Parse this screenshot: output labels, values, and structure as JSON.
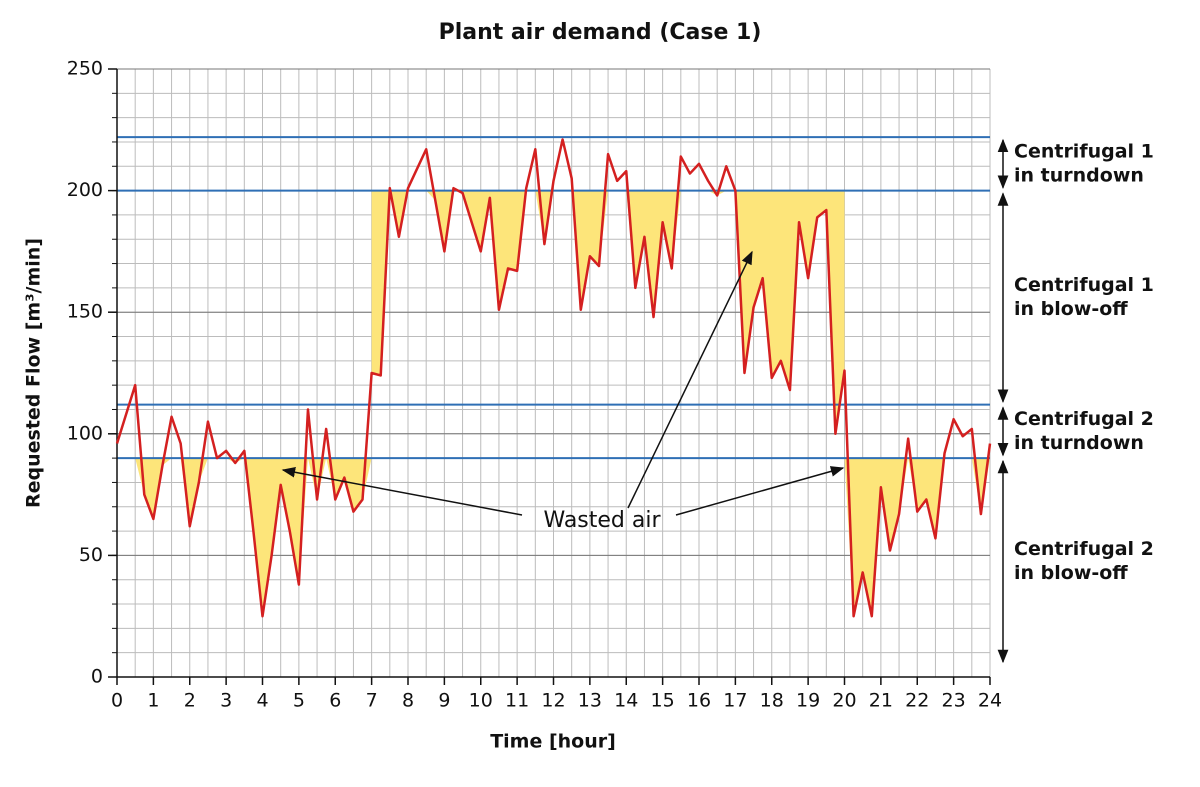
{
  "chart_data": {
    "type": "line",
    "title": "Plant air demand (Case 1)",
    "xlabel": "Time [hour]",
    "ylabel": "Requested Flow [m³/min]",
    "xlim": [
      0,
      24
    ],
    "ylim": [
      0,
      250
    ],
    "xticks": [
      0,
      1,
      2,
      3,
      4,
      5,
      6,
      7,
      8,
      9,
      10,
      11,
      12,
      13,
      14,
      15,
      16,
      17,
      18,
      19,
      20,
      21,
      22,
      23,
      24
    ],
    "yticks": [
      0,
      50,
      100,
      150,
      200,
      250
    ],
    "grid": true,
    "x_minor_step": 0.5,
    "y_minor_step": 10,
    "x": [
      0,
      0.25,
      0.5,
      0.75,
      1,
      1.25,
      1.5,
      1.75,
      2,
      2.25,
      2.5,
      2.75,
      3,
      3.25,
      3.5,
      3.75,
      4,
      4.25,
      4.5,
      4.75,
      5,
      5.25,
      5.5,
      5.75,
      6,
      6.25,
      6.5,
      6.75,
      7,
      7.25,
      7.5,
      7.75,
      8,
      8.25,
      8.5,
      8.75,
      9,
      9.25,
      9.5,
      9.75,
      10,
      10.25,
      10.5,
      10.75,
      11,
      11.25,
      11.5,
      11.75,
      12,
      12.25,
      12.5,
      12.75,
      13,
      13.25,
      13.5,
      13.75,
      14,
      14.25,
      14.5,
      14.75,
      15,
      15.25,
      15.5,
      15.75,
      16,
      16.25,
      16.5,
      16.75,
      17,
      17.25,
      17.5,
      17.75,
      18,
      18.25,
      18.5,
      18.75,
      19,
      19.25,
      19.5,
      19.75,
      20,
      20.25,
      20.5,
      20.75,
      21,
      21.25,
      21.5,
      21.75,
      22,
      22.25,
      22.5,
      22.75,
      23,
      23.25,
      23.5,
      23.75,
      24
    ],
    "series": [
      {
        "name": "Requested flow",
        "color": "#d42020",
        "values": [
          96,
          108,
          120,
          75,
          65,
          87,
          107,
          96,
          62,
          80,
          105,
          90,
          93,
          88,
          93,
          60,
          25,
          50,
          79,
          60,
          38,
          110,
          73,
          102,
          73,
          82,
          68,
          73,
          125,
          124,
          201,
          181,
          201,
          209,
          217,
          196,
          175,
          201,
          199,
          187,
          175,
          197,
          151,
          168,
          167,
          201,
          217,
          178,
          204,
          221,
          205,
          151,
          173,
          169,
          215,
          204,
          208,
          160,
          181,
          148,
          187,
          168,
          214,
          207,
          211,
          204,
          198,
          210,
          200,
          125,
          152,
          164,
          123,
          130,
          118,
          187,
          164,
          189,
          192,
          100,
          126,
          25,
          43,
          25,
          78,
          52,
          67,
          98,
          68,
          73,
          57,
          92,
          106,
          99,
          102,
          67,
          96
        ]
      }
    ],
    "hlines": {
      "color": "#2f6fb5",
      "values": [
        222,
        200,
        112,
        90
      ]
    },
    "wasted_air_regions": {
      "color": "#fde57a",
      "regions": [
        {
          "from": 0,
          "to": 7,
          "level": 90
        },
        {
          "from": 7,
          "to": 20,
          "level": 200
        },
        {
          "from": 20,
          "to": 24,
          "level": 90
        }
      ]
    },
    "wasted_air_label": "Wasted air",
    "zones": [
      {
        "lines": [
          "Centrifugal 1",
          "in turndown"
        ],
        "range": [
          222,
          200
        ]
      },
      {
        "lines": [
          "Centrifugal 1",
          "in blow-off"
        ],
        "range": [
          200,
          112
        ]
      },
      {
        "lines": [
          "Centrifugal 2",
          "in turndown"
        ],
        "range": [
          112,
          90
        ]
      },
      {
        "lines": [
          "Centrifugal 2",
          "in blow-off"
        ],
        "range": [
          90,
          5
        ]
      }
    ]
  }
}
